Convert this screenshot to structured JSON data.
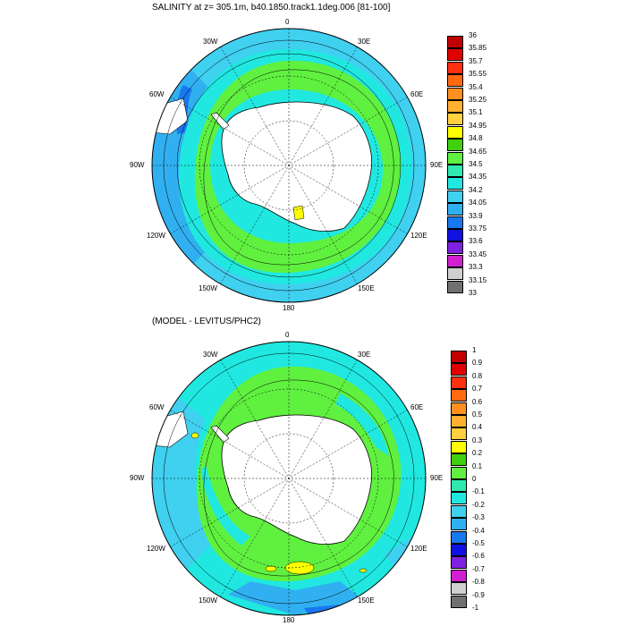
{
  "panels": [
    {
      "title": "SALINITY at z= 305.1m, b40.1850.track1.1deg.006 [81-100]",
      "lon_labels": [
        "0",
        "30E",
        "60E",
        "90E",
        "120E",
        "150E",
        "180",
        "150W",
        "120W",
        "90W",
        "60W",
        "30W"
      ],
      "colorbar": {
        "labels": [
          "36",
          "35.85",
          "35.7",
          "35.55",
          "35.4",
          "35.25",
          "35.1",
          "34.95",
          "34.8",
          "34.65",
          "34.5",
          "34.35",
          "34.2",
          "34.05",
          "33.9",
          "33.75",
          "33.6",
          "33.45",
          "33.3",
          "33.15",
          "33"
        ],
        "colors": [
          "#c00000",
          "#e00000",
          "#ff3010",
          "#ff6a10",
          "#ff9020",
          "#ffb030",
          "#ffd040",
          "#ffff00",
          "#40d010",
          "#60f040",
          "#30e8b0",
          "#20e8e0",
          "#40d0f0",
          "#30b0f0",
          "#1878f0",
          "#1010e0",
          "#8020e0",
          "#d020d0",
          "#d0d0d0",
          "#707070"
        ]
      }
    },
    {
      "title": "(MODEL - LEVITUS/PHC2)",
      "lon_labels": [
        "0",
        "30E",
        "60E",
        "90E",
        "120E",
        "150E",
        "180",
        "150W",
        "120W",
        "90W",
        "60W",
        "30W"
      ],
      "colorbar": {
        "labels": [
          "1",
          "0.9",
          "0.8",
          "0.7",
          "0.6",
          "0.5",
          "0.4",
          "0.3",
          "0.2",
          "0.1",
          "0",
          "-0.1",
          "-0.2",
          "-0.3",
          "-0.4",
          "-0.5",
          "-0.6",
          "-0.7",
          "-0.8",
          "-0.9",
          "-1"
        ],
        "colors": [
          "#c00000",
          "#e00000",
          "#ff3010",
          "#ff6a10",
          "#ff9020",
          "#ffb030",
          "#ffd040",
          "#ffff00",
          "#40d010",
          "#60f040",
          "#30e8b0",
          "#20e8e0",
          "#40d0f0",
          "#30b0f0",
          "#1878f0",
          "#1010e0",
          "#8020e0",
          "#d020d0",
          "#d0d0d0",
          "#707070"
        ]
      }
    }
  ]
}
